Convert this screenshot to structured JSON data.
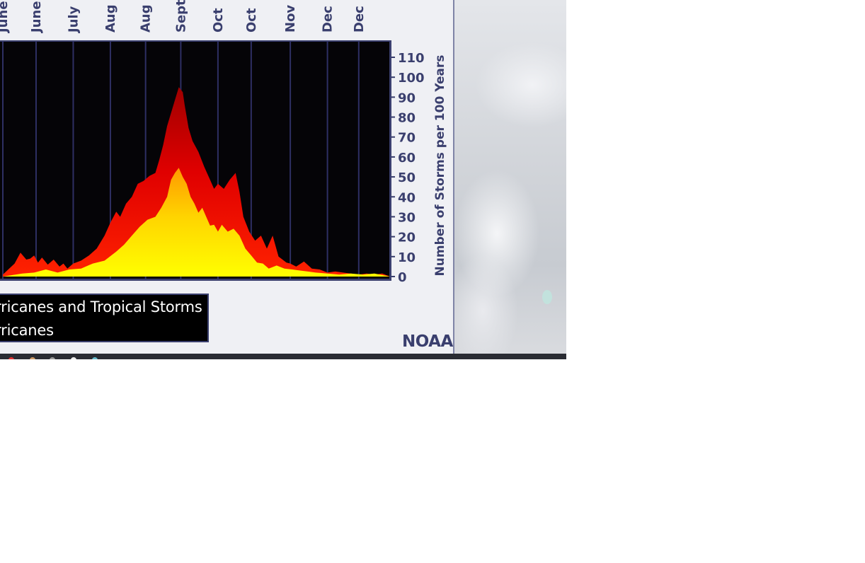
{
  "chart_data": {
    "type": "area",
    "xlabel": "",
    "ylabel": "Number of Storms per 100 Years",
    "ylim": [
      0,
      115
    ],
    "y_ticks": [
      0,
      10,
      20,
      30,
      40,
      50,
      60,
      70,
      80,
      90,
      100,
      110
    ],
    "x_tick_labels": [
      "June",
      "June",
      "July",
      "Aug",
      "Aug",
      "Sept",
      "Oct",
      "Oct",
      "Nov",
      "Dec",
      "Dec"
    ],
    "x_tick_positions": [
      0,
      17,
      36,
      55,
      73,
      91,
      110,
      127,
      147,
      166,
      182
    ],
    "x_range": [
      0,
      198
    ],
    "grid": "vertical lines at x ticks",
    "series": [
      {
        "name": "Hurricanes and Tropical Storms",
        "color": "#ff1a00",
        "x": [
          0,
          6,
          9,
          12,
          14,
          16,
          18,
          20,
          23,
          26,
          29,
          31,
          33,
          36,
          40,
          44,
          48,
          52,
          55,
          58,
          60,
          63,
          66,
          69,
          72,
          75,
          78,
          80,
          82,
          84,
          86,
          88,
          90,
          92,
          93,
          95,
          97,
          100,
          103,
          106,
          108,
          110,
          113,
          116,
          119,
          121,
          123,
          126,
          129,
          132,
          135,
          138,
          141,
          143,
          145,
          147,
          150,
          154,
          158,
          162,
          166,
          170,
          174,
          178,
          182,
          186,
          190,
          194,
          198
        ],
        "values": [
          1,
          6,
          12,
          8,
          9,
          10,
          7,
          9,
          6,
          8,
          5,
          6,
          4,
          6,
          8,
          10,
          14,
          20,
          27,
          32,
          30,
          36,
          40,
          46,
          48,
          50,
          52,
          58,
          66,
          75,
          82,
          88,
          95,
          92,
          86,
          74,
          68,
          62,
          55,
          48,
          44,
          46,
          44,
          48,
          52,
          42,
          30,
          22,
          18,
          20,
          14,
          20,
          10,
          8,
          7,
          6,
          5,
          7,
          4,
          3,
          2,
          2,
          2,
          1,
          1,
          1,
          1,
          1,
          0
        ]
      },
      {
        "name": "Hurricanes",
        "color": "#ffe600",
        "x": [
          0,
          10,
          16,
          22,
          28,
          34,
          40,
          46,
          52,
          58,
          62,
          66,
          70,
          74,
          78,
          81,
          84,
          86,
          88,
          90,
          92,
          94,
          96,
          98,
          100,
          102,
          104,
          106,
          108,
          110,
          112,
          115,
          118,
          121,
          124,
          127,
          130,
          133,
          136,
          140,
          144,
          148,
          152,
          156,
          160,
          166,
          172,
          178,
          184,
          190,
          198
        ],
        "values": [
          0,
          1,
          2,
          3,
          2,
          3,
          4,
          6,
          8,
          12,
          16,
          20,
          25,
          28,
          30,
          34,
          40,
          48,
          52,
          54,
          50,
          46,
          40,
          36,
          32,
          34,
          30,
          25,
          26,
          22,
          26,
          22,
          24,
          20,
          14,
          10,
          7,
          6,
          4,
          5,
          4,
          3,
          3,
          2,
          2,
          1,
          1,
          1,
          1,
          1,
          0
        ]
      }
    ]
  },
  "legend": {
    "line1": "urricanes and Tropical Storms",
    "line2": "urricanes"
  },
  "branding": {
    "logo_text": "NOAA"
  },
  "colors": {
    "plot_background": "#050407",
    "axis": "#3a3f6e",
    "panel_background": "#eff0f4"
  }
}
